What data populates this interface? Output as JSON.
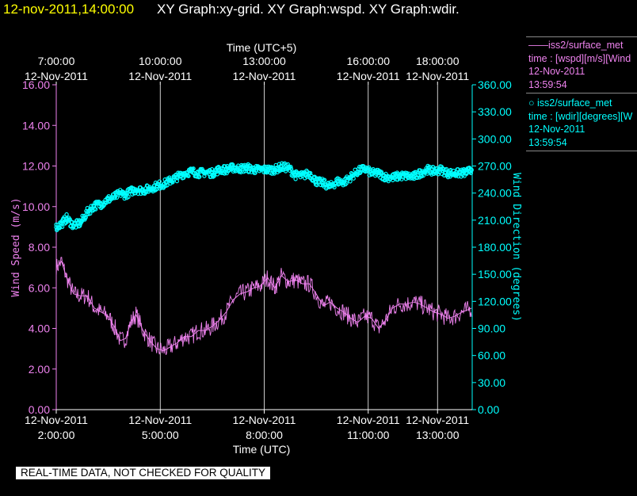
{
  "header": {
    "timestamp": "12-nov-2011,14:00:00",
    "graph_titles": "XY Graph:xy-grid.  XY Graph:wspd.  XY Graph:wdir."
  },
  "legend": {
    "wspd": {
      "series": "iss2/surface_met",
      "variable": "time : [wspd][m/s][Wind",
      "date": "12-Nov-2011",
      "time": "13:59:54"
    },
    "wdir": {
      "series": "iss2/surface_met",
      "variable": "time : [wdir][degrees][W",
      "date": "12-Nov-2011",
      "time": "13:59:54"
    }
  },
  "disclaimer": "REAL-TIME DATA, NOT CHECKED FOR QUALITY",
  "colors": {
    "background": "#000000",
    "wspd": "#ee82ee",
    "wdir": "#00ffff",
    "grid": "#ffffff",
    "timestamp": "#ffff00"
  },
  "chart_data": {
    "type": "line",
    "top_axis_title": "Time (UTC+5)",
    "bottom_axis_title": "Time (UTC)",
    "top_ticks": [
      {
        "hour": 2.0,
        "time": "7:00:00",
        "date": "12-Nov-2011"
      },
      {
        "hour": 5.0,
        "time": "10:00:00",
        "date": "12-Nov-2011"
      },
      {
        "hour": 8.0,
        "time": "13:00:00",
        "date": "12-Nov-2011"
      },
      {
        "hour": 11.0,
        "time": "16:00:00",
        "date": "12-Nov-2011"
      },
      {
        "hour": 13.0,
        "time": "18:00:00",
        "date": "12-Nov-2011"
      }
    ],
    "bottom_ticks": [
      {
        "hour": 2.0,
        "date": "12-Nov-2011",
        "time": "2:00:00"
      },
      {
        "hour": 5.0,
        "date": "12-Nov-2011",
        "time": "5:00:00"
      },
      {
        "hour": 8.0,
        "date": "12-Nov-2011",
        "time": "8:00:00"
      },
      {
        "hour": 11.0,
        "date": "12-Nov-2011",
        "time": "11:00:00"
      },
      {
        "hour": 13.0,
        "date": "12-Nov-2011",
        "time": "13:00:00"
      }
    ],
    "xlim": [
      2.0,
      14.0
    ],
    "grid_x": true,
    "left_axis": {
      "label": "Wind Speed (m/s)",
      "ylim": [
        0,
        16
      ],
      "ticks": [
        "0.00",
        "2.00",
        "4.00",
        "6.00",
        "8.00",
        "10.00",
        "12.00",
        "14.00",
        "16.00"
      ]
    },
    "right_axis": {
      "label": "Wind Direction (degrees)",
      "ylim": [
        0,
        360
      ],
      "ticks": [
        "0.00",
        "30.00",
        "60.00",
        "90.00",
        "120.00",
        "150.00",
        "180.00",
        "210.00",
        "240.00",
        "270.00",
        "300.00",
        "330.00",
        "360.00"
      ]
    },
    "series": [
      {
        "name": "iss2/surface_met",
        "variable": "wspd",
        "axis": "left",
        "style": "line",
        "x": [
          2.0,
          2.15,
          2.3,
          2.5,
          2.7,
          2.9,
          3.1,
          3.3,
          3.5,
          3.7,
          3.85,
          4.0,
          4.15,
          4.3,
          4.5,
          4.7,
          4.9,
          5.1,
          5.3,
          5.5,
          5.7,
          5.9,
          6.1,
          6.3,
          6.5,
          6.7,
          6.9,
          7.1,
          7.3,
          7.5,
          7.7,
          7.9,
          8.1,
          8.3,
          8.5,
          8.7,
          8.9,
          9.1,
          9.3,
          9.5,
          9.7,
          9.9,
          10.1,
          10.3,
          10.5,
          10.7,
          10.9,
          11.1,
          11.3,
          11.5,
          11.7,
          11.9,
          12.1,
          12.3,
          12.5,
          12.7,
          12.9,
          13.1,
          13.3,
          13.5,
          13.7,
          13.85,
          13.98
        ],
        "y": [
          7.0,
          7.3,
          6.5,
          5.7,
          5.6,
          5.6,
          5.0,
          4.8,
          4.6,
          4.0,
          3.4,
          3.5,
          4.3,
          4.7,
          3.9,
          3.4,
          3.0,
          2.9,
          3.1,
          3.3,
          3.6,
          3.6,
          3.9,
          3.9,
          4.1,
          4.4,
          4.8,
          5.4,
          5.7,
          5.8,
          6.0,
          6.1,
          6.5,
          6.0,
          6.6,
          6.3,
          6.4,
          6.2,
          6.2,
          5.7,
          5.1,
          5.3,
          5.0,
          4.8,
          4.5,
          4.3,
          4.6,
          4.5,
          4.0,
          4.4,
          5.0,
          5.2,
          5.2,
          5.3,
          5.2,
          5.0,
          4.8,
          4.7,
          4.5,
          4.6,
          4.8,
          4.9,
          5.0
        ]
      },
      {
        "name": "iss2/surface_met",
        "variable": "wdir",
        "axis": "right",
        "style": "markers",
        "x": [
          2.0,
          2.15,
          2.3,
          2.5,
          2.7,
          2.9,
          3.1,
          3.3,
          3.5,
          3.7,
          3.85,
          4.0,
          4.15,
          4.3,
          4.5,
          4.7,
          4.9,
          5.1,
          5.3,
          5.5,
          5.7,
          5.9,
          6.1,
          6.3,
          6.5,
          6.7,
          6.9,
          7.1,
          7.3,
          7.5,
          7.7,
          7.9,
          8.1,
          8.3,
          8.5,
          8.7,
          8.9,
          9.1,
          9.3,
          9.5,
          9.7,
          9.9,
          10.1,
          10.3,
          10.5,
          10.7,
          10.9,
          11.1,
          11.3,
          11.5,
          11.7,
          11.9,
          12.1,
          12.3,
          12.5,
          12.7,
          12.9,
          13.1,
          13.3,
          13.5,
          13.7,
          13.85,
          13.98
        ],
        "y": [
          202,
          206,
          212,
          204,
          207,
          219,
          226,
          228,
          233,
          236,
          240,
          238,
          242,
          244,
          243,
          245,
          248,
          250,
          254,
          258,
          262,
          264,
          262,
          263,
          262,
          266,
          266,
          268,
          267,
          268,
          266,
          266,
          266,
          266,
          269,
          268,
          260,
          259,
          262,
          253,
          251,
          247,
          253,
          252,
          258,
          264,
          267,
          262,
          262,
          258,
          257,
          259,
          259,
          258,
          262,
          266,
          264,
          266,
          262,
          262,
          262,
          263,
          266
        ]
      }
    ]
  }
}
